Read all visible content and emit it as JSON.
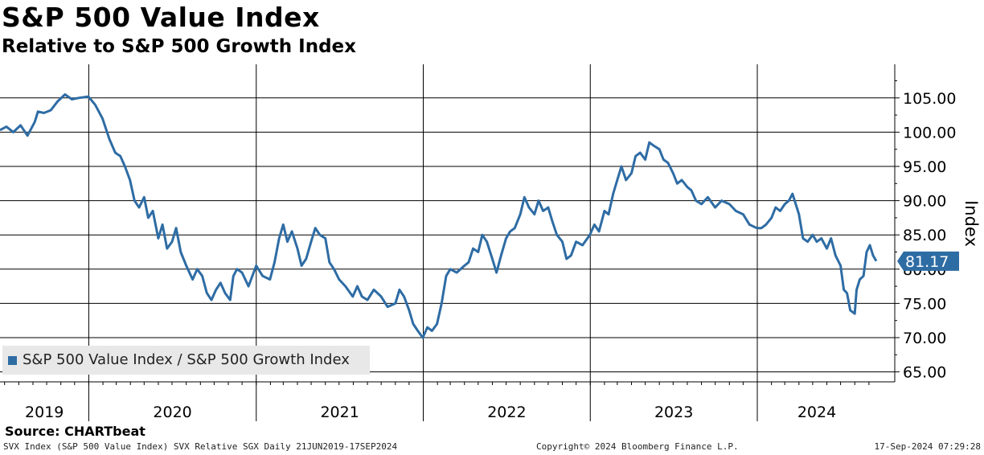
{
  "chart_data": {
    "type": "line",
    "title": "S&P 500 Value Index",
    "subtitle": "Relative to S&P 500 Growth Index",
    "ylabel": "Index",
    "ylim": [
      63,
      110
    ],
    "y_ticks": [
      "105.00",
      "100.00",
      "95.00",
      "90.00",
      "85.00",
      "80.00",
      "75.00",
      "70.00",
      "65.00"
    ],
    "x_ticks": [
      "2019",
      "2020",
      "2021",
      "2022",
      "2023",
      "2024"
    ],
    "x_range": [
      "2019-06-21",
      "2024-09-17"
    ],
    "grid": true,
    "legend_position": "bottom-left",
    "last_value_label": "81.17",
    "series": [
      {
        "name": "S&P 500 Value Index / S&P 500 Growth Index",
        "color": "#2e6ca4",
        "points": [
          [
            "2019-06-21",
            100.3
          ],
          [
            "2019-07-05",
            100.8
          ],
          [
            "2019-07-20",
            100.0
          ],
          [
            "2019-08-05",
            101.0
          ],
          [
            "2019-08-20",
            99.5
          ],
          [
            "2019-09-05",
            101.5
          ],
          [
            "2019-09-12",
            103.0
          ],
          [
            "2019-09-25",
            102.8
          ],
          [
            "2019-10-10",
            103.2
          ],
          [
            "2019-10-25",
            104.5
          ],
          [
            "2019-11-10",
            105.5
          ],
          [
            "2019-11-25",
            104.8
          ],
          [
            "2019-12-10",
            105.0
          ],
          [
            "2019-12-31",
            105.2
          ],
          [
            "2020-01-15",
            104.0
          ],
          [
            "2020-01-31",
            102.0
          ],
          [
            "2020-02-15",
            99.0
          ],
          [
            "2020-02-28",
            97.0
          ],
          [
            "2020-03-10",
            96.5
          ],
          [
            "2020-03-20",
            95.0
          ],
          [
            "2020-03-31",
            93.0
          ],
          [
            "2020-04-10",
            90.0
          ],
          [
            "2020-04-20",
            89.0
          ],
          [
            "2020-05-01",
            90.5
          ],
          [
            "2020-05-10",
            87.5
          ],
          [
            "2020-05-20",
            88.5
          ],
          [
            "2020-06-01",
            84.5
          ],
          [
            "2020-06-10",
            86.5
          ],
          [
            "2020-06-20",
            83.0
          ],
          [
            "2020-07-01",
            84.0
          ],
          [
            "2020-07-10",
            86.0
          ],
          [
            "2020-07-20",
            82.5
          ],
          [
            "2020-08-01",
            80.5
          ],
          [
            "2020-08-15",
            78.5
          ],
          [
            "2020-08-25",
            80.0
          ],
          [
            "2020-09-05",
            79.0
          ],
          [
            "2020-09-15",
            76.5
          ],
          [
            "2020-09-25",
            75.5
          ],
          [
            "2020-10-05",
            77.0
          ],
          [
            "2020-10-15",
            78.0
          ],
          [
            "2020-10-25",
            76.5
          ],
          [
            "2020-11-05",
            75.5
          ],
          [
            "2020-11-12",
            79.0
          ],
          [
            "2020-11-20",
            80.0
          ],
          [
            "2020-12-01",
            79.5
          ],
          [
            "2020-12-15",
            77.5
          ],
          [
            "2021-01-01",
            80.5
          ],
          [
            "2021-01-15",
            79.0
          ],
          [
            "2021-01-31",
            78.5
          ],
          [
            "2021-02-10",
            81.0
          ],
          [
            "2021-02-20",
            84.5
          ],
          [
            "2021-03-01",
            86.5
          ],
          [
            "2021-03-10",
            84.0
          ],
          [
            "2021-03-20",
            85.5
          ],
          [
            "2021-04-01",
            83.0
          ],
          [
            "2021-04-10",
            80.5
          ],
          [
            "2021-04-20",
            81.5
          ],
          [
            "2021-05-01",
            84.0
          ],
          [
            "2021-05-10",
            86.0
          ],
          [
            "2021-05-20",
            85.0
          ],
          [
            "2021-06-01",
            84.5
          ],
          [
            "2021-06-10",
            81.0
          ],
          [
            "2021-06-20",
            80.0
          ],
          [
            "2021-07-01",
            78.5
          ],
          [
            "2021-07-15",
            77.5
          ],
          [
            "2021-07-31",
            76.0
          ],
          [
            "2021-08-10",
            77.5
          ],
          [
            "2021-08-20",
            76.0
          ],
          [
            "2021-09-01",
            75.5
          ],
          [
            "2021-09-15",
            77.0
          ],
          [
            "2021-10-01",
            76.0
          ],
          [
            "2021-10-15",
            74.5
          ],
          [
            "2021-11-01",
            75.0
          ],
          [
            "2021-11-10",
            77.0
          ],
          [
            "2021-11-20",
            76.0
          ],
          [
            "2021-12-01",
            74.0
          ],
          [
            "2021-12-10",
            72.0
          ],
          [
            "2021-12-20",
            71.0
          ],
          [
            "2021-12-31",
            70.0
          ],
          [
            "2022-01-10",
            71.5
          ],
          [
            "2022-01-20",
            71.0
          ],
          [
            "2022-01-31",
            72.0
          ],
          [
            "2022-02-10",
            75.0
          ],
          [
            "2022-02-20",
            79.0
          ],
          [
            "2022-03-01",
            80.0
          ],
          [
            "2022-03-15",
            79.5
          ],
          [
            "2022-04-01",
            80.5
          ],
          [
            "2022-04-10",
            81.0
          ],
          [
            "2022-04-20",
            83.0
          ],
          [
            "2022-05-01",
            82.5
          ],
          [
            "2022-05-10",
            85.0
          ],
          [
            "2022-05-20",
            84.0
          ],
          [
            "2022-06-01",
            81.5
          ],
          [
            "2022-06-10",
            79.5
          ],
          [
            "2022-06-20",
            82.0
          ],
          [
            "2022-07-01",
            84.5
          ],
          [
            "2022-07-10",
            85.5
          ],
          [
            "2022-07-20",
            86.0
          ],
          [
            "2022-08-01",
            88.0
          ],
          [
            "2022-08-10",
            90.5
          ],
          [
            "2022-08-20",
            89.0
          ],
          [
            "2022-09-01",
            88.0
          ],
          [
            "2022-09-10",
            90.0
          ],
          [
            "2022-09-20",
            88.5
          ],
          [
            "2022-10-01",
            89.0
          ],
          [
            "2022-10-10",
            87.0
          ],
          [
            "2022-10-20",
            85.0
          ],
          [
            "2022-11-01",
            84.0
          ],
          [
            "2022-11-10",
            81.5
          ],
          [
            "2022-11-20",
            82.0
          ],
          [
            "2022-12-01",
            84.0
          ],
          [
            "2022-12-15",
            83.5
          ],
          [
            "2022-12-31",
            85.0
          ],
          [
            "2023-01-10",
            86.5
          ],
          [
            "2023-01-20",
            85.5
          ],
          [
            "2023-02-01",
            88.5
          ],
          [
            "2023-02-10",
            88.0
          ],
          [
            "2023-02-20",
            91.0
          ],
          [
            "2023-03-01",
            93.0
          ],
          [
            "2023-03-10",
            95.0
          ],
          [
            "2023-03-20",
            93.0
          ],
          [
            "2023-04-01",
            94.0
          ],
          [
            "2023-04-10",
            96.5
          ],
          [
            "2023-04-20",
            97.0
          ],
          [
            "2023-05-01",
            96.0
          ],
          [
            "2023-05-10",
            98.5
          ],
          [
            "2023-05-20",
            98.0
          ],
          [
            "2023-06-01",
            97.5
          ],
          [
            "2023-06-10",
            96.0
          ],
          [
            "2023-06-20",
            95.5
          ],
          [
            "2023-07-01",
            94.0
          ],
          [
            "2023-07-10",
            92.5
          ],
          [
            "2023-07-20",
            93.0
          ],
          [
            "2023-08-01",
            92.0
          ],
          [
            "2023-08-10",
            91.5
          ],
          [
            "2023-08-20",
            90.0
          ],
          [
            "2023-09-01",
            89.5
          ],
          [
            "2023-09-15",
            90.5
          ],
          [
            "2023-10-01",
            89.0
          ],
          [
            "2023-10-15",
            90.0
          ],
          [
            "2023-11-01",
            89.5
          ],
          [
            "2023-11-15",
            88.5
          ],
          [
            "2023-12-01",
            88.0
          ],
          [
            "2023-12-15",
            86.5
          ],
          [
            "2023-12-31",
            86.0
          ],
          [
            "2024-01-10",
            86.0
          ],
          [
            "2024-01-20",
            86.5
          ],
          [
            "2024-02-01",
            87.5
          ],
          [
            "2024-02-10",
            89.0
          ],
          [
            "2024-02-20",
            88.5
          ],
          [
            "2024-03-01",
            89.5
          ],
          [
            "2024-03-10",
            90.0
          ],
          [
            "2024-03-18",
            91.0
          ],
          [
            "2024-04-01",
            88.0
          ],
          [
            "2024-04-10",
            84.5
          ],
          [
            "2024-04-20",
            84.0
          ],
          [
            "2024-05-01",
            85.0
          ],
          [
            "2024-05-10",
            84.0
          ],
          [
            "2024-05-20",
            84.5
          ],
          [
            "2024-06-01",
            83.0
          ],
          [
            "2024-06-10",
            84.5
          ],
          [
            "2024-06-20",
            82.0
          ],
          [
            "2024-07-01",
            80.5
          ],
          [
            "2024-07-08",
            77.0
          ],
          [
            "2024-07-15",
            76.5
          ],
          [
            "2024-07-22",
            74.0
          ],
          [
            "2024-08-01",
            73.5
          ],
          [
            "2024-08-05",
            77.0
          ],
          [
            "2024-08-12",
            78.5
          ],
          [
            "2024-08-20",
            79.0
          ],
          [
            "2024-08-27",
            82.5
          ],
          [
            "2024-09-03",
            83.5
          ],
          [
            "2024-09-10",
            82.0
          ],
          [
            "2024-09-17",
            81.17
          ]
        ]
      }
    ]
  },
  "legend": {
    "label": "S&P 500 Value Index / S&P 500 Growth Index"
  },
  "source": "Source: CHARTbeat",
  "footer": {
    "left": "SVX Index (S&P 500 Value Index) SVX Relative SGX  Daily 21JUN2019-17SEP2024",
    "middle": "Copyright© 2024 Bloomberg Finance L.P.",
    "right": "17-Sep-2024 07:29:28"
  }
}
